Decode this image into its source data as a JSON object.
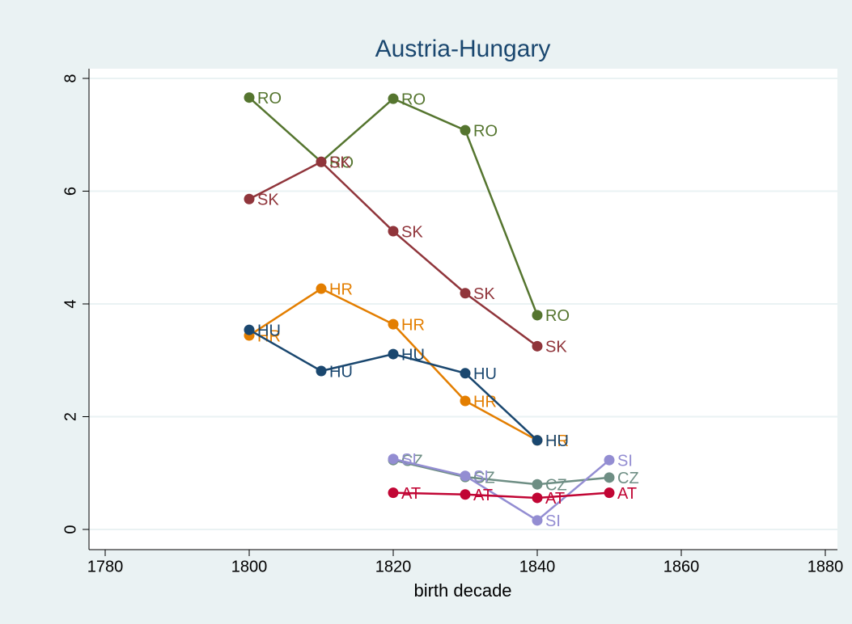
{
  "chart_data": {
    "type": "line",
    "title": "Austria-Hungary",
    "x_label": "birth decade",
    "x": [
      1800,
      1810,
      1820,
      1830,
      1840,
      1850
    ],
    "series": [
      {
        "name": "RO",
        "color": "#55752f",
        "values": [
          7.66,
          6.52,
          7.64,
          7.08,
          3.8,
          null
        ]
      },
      {
        "name": "SK",
        "color": "#90353b",
        "values": [
          5.86,
          6.52,
          5.29,
          4.19,
          3.25,
          null
        ]
      },
      {
        "name": "HR",
        "color": "#e37e00",
        "values": [
          3.44,
          4.27,
          3.64,
          2.28,
          1.58,
          null
        ]
      },
      {
        "name": "HU",
        "color": "#1a476f",
        "values": [
          3.54,
          2.81,
          3.11,
          2.77,
          1.58,
          null
        ]
      },
      {
        "name": "CZ",
        "color": "#6e8e84",
        "values": [
          null,
          null,
          1.23,
          0.93,
          0.8,
          0.92
        ]
      },
      {
        "name": "SI",
        "color": "#938dd2",
        "values": [
          null,
          null,
          1.25,
          0.95,
          0.16,
          1.23
        ]
      },
      {
        "name": "AT",
        "color": "#c10534",
        "values": [
          null,
          null,
          0.65,
          0.62,
          0.56,
          0.65
        ]
      }
    ],
    "xlim": [
      1780,
      1880
    ],
    "xticks": [
      1780,
      1800,
      1820,
      1840,
      1860,
      1880
    ],
    "ylim": [
      0,
      8
    ],
    "yticks": [
      0,
      2,
      4,
      6,
      8
    ],
    "grid": true
  }
}
